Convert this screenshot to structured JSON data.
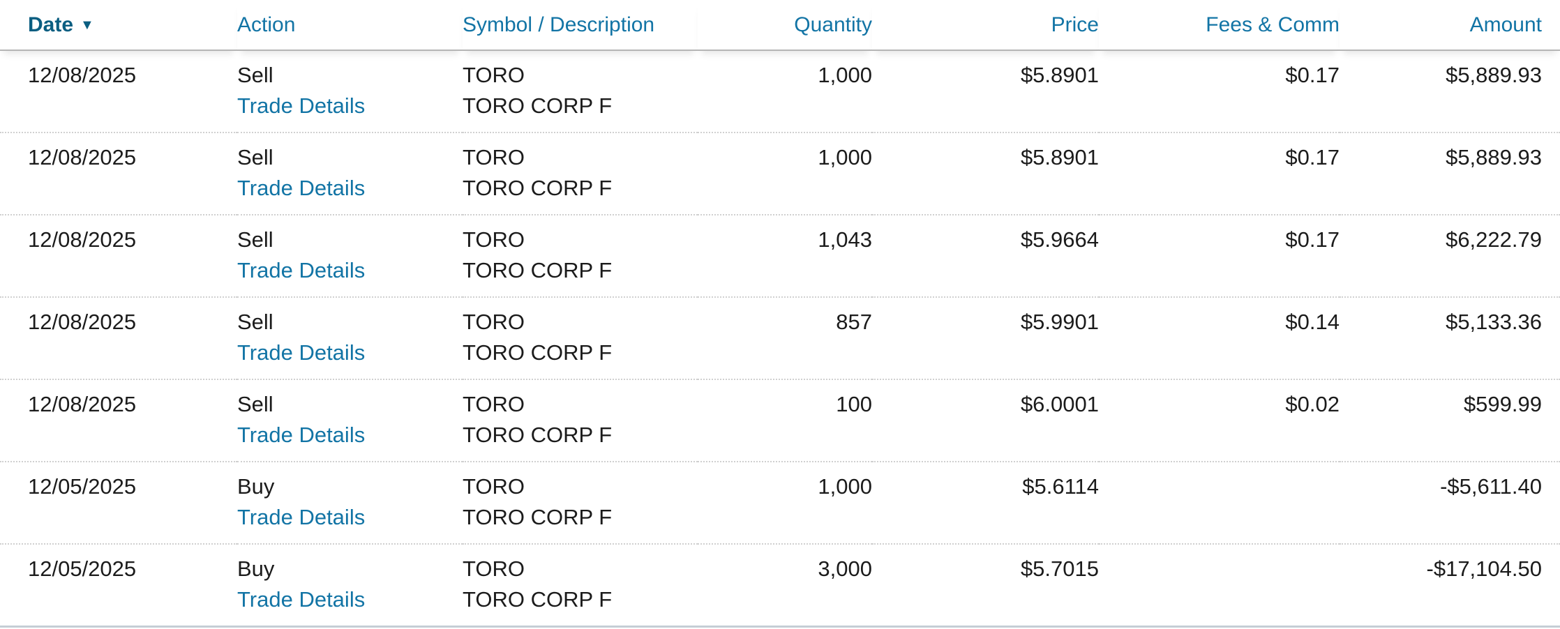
{
  "table": {
    "columns": [
      {
        "key": "date",
        "label": "Date",
        "align": "left",
        "sorted": "descending"
      },
      {
        "key": "action",
        "label": "Action",
        "align": "left"
      },
      {
        "key": "symbol",
        "label": "Symbol / Description",
        "align": "left"
      },
      {
        "key": "quantity",
        "label": "Quantity",
        "align": "right"
      },
      {
        "key": "price",
        "label": "Price",
        "align": "right"
      },
      {
        "key": "fees",
        "label": "Fees & Comm",
        "align": "right"
      },
      {
        "key": "amount",
        "label": "Amount",
        "align": "right"
      }
    ],
    "sort_icon_glyph": "▼",
    "trade_details_label": "Trade Details",
    "rows": [
      {
        "date": "12/08/2025",
        "action": "Sell",
        "symbol": "TORO",
        "description": "TORO CORP F",
        "quantity": "1,000",
        "price": "$5.8901",
        "fees": "$0.17",
        "amount": "$5,889.93"
      },
      {
        "date": "12/08/2025",
        "action": "Sell",
        "symbol": "TORO",
        "description": "TORO CORP F",
        "quantity": "1,000",
        "price": "$5.8901",
        "fees": "$0.17",
        "amount": "$5,889.93"
      },
      {
        "date": "12/08/2025",
        "action": "Sell",
        "symbol": "TORO",
        "description": "TORO CORP F",
        "quantity": "1,043",
        "price": "$5.9664",
        "fees": "$0.17",
        "amount": "$6,222.79"
      },
      {
        "date": "12/08/2025",
        "action": "Sell",
        "symbol": "TORO",
        "description": "TORO CORP F",
        "quantity": "857",
        "price": "$5.9901",
        "fees": "$0.14",
        "amount": "$5,133.36"
      },
      {
        "date": "12/08/2025",
        "action": "Sell",
        "symbol": "TORO",
        "description": "TORO CORP F",
        "quantity": "100",
        "price": "$6.0001",
        "fees": "$0.02",
        "amount": "$599.99"
      },
      {
        "date": "12/05/2025",
        "action": "Buy",
        "symbol": "TORO",
        "description": "TORO CORP F",
        "quantity": "1,000",
        "price": "$5.6114",
        "fees": "",
        "amount": "-$5,611.40"
      },
      {
        "date": "12/05/2025",
        "action": "Buy",
        "symbol": "TORO",
        "description": "TORO CORP F",
        "quantity": "3,000",
        "price": "$5.7015",
        "fees": "",
        "amount": "-$17,104.50"
      }
    ]
  },
  "colors": {
    "header_link": "#1274a5",
    "header_sorted": "#0b5e81",
    "body_text": "#1b1b1b",
    "row_separator": "#d0d0d0",
    "header_border": "#b5b5b5",
    "bottom_border": "#c5ced5"
  }
}
